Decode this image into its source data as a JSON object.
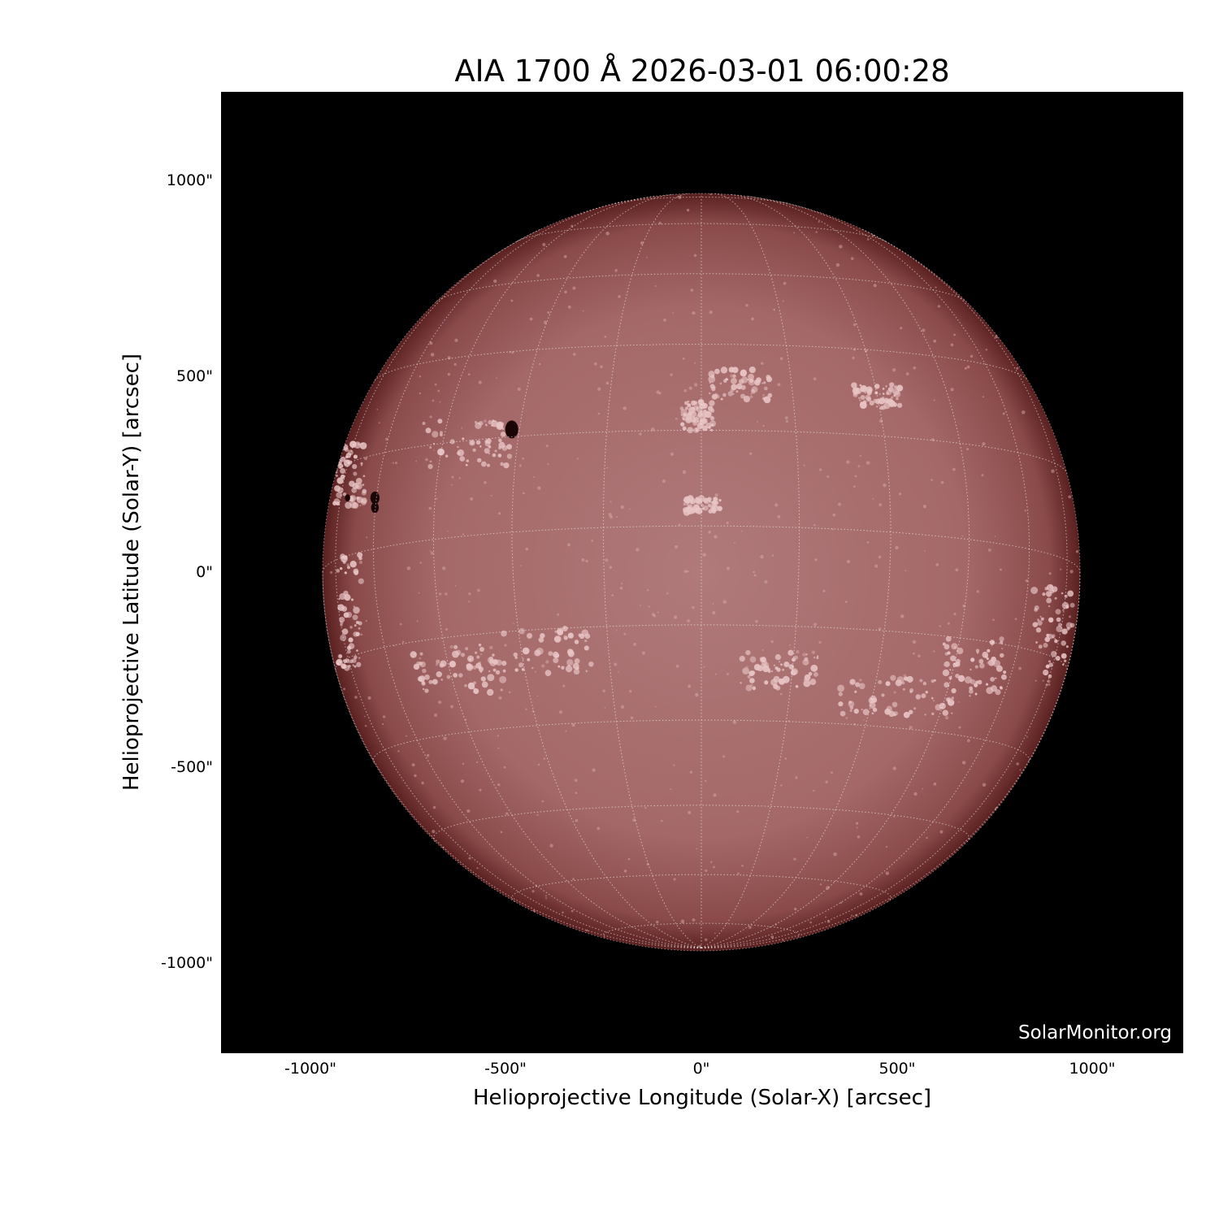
{
  "title": "AIA 1700 Å 2026-03-01 06:00:28",
  "watermark": "SolarMonitor.org",
  "image": {
    "instrument": "AIA",
    "wavelength": "1700 Å",
    "colormap_color": "#a85a5a",
    "background_color": "#000000",
    "grid": "heliographic lat/lon, dotted white",
    "features": [
      "sunspots",
      "plage"
    ]
  },
  "axes": {
    "xlabel": "Helioprojective Longitude (Solar-X) [arcsec]",
    "ylabel": "Helioprojective Latitude (Solar-Y) [arcsec]",
    "xticks": [
      "-1000\"",
      "-500\"",
      "0\"",
      "500\"",
      "1000\""
    ],
    "yticks": [
      "1000\"",
      "500\"",
      "0\"",
      "-500\"",
      "-1000\""
    ],
    "xlim": [
      -1230,
      1230
    ],
    "ylim": [
      -1230,
      1230
    ]
  }
}
